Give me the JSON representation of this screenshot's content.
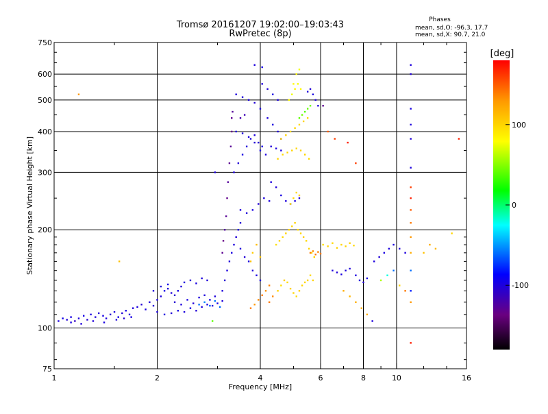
{
  "chart_data": {
    "type": "scatter",
    "title": "Tromsø 20161207 19:02:00–19:03:43",
    "subtitle": "RwPretec (8p)",
    "xlabel": "Frequency [MHz]",
    "ylabel": "Stationary phase Virtual Height [km]",
    "x_scale": "log",
    "y_scale": "log",
    "xlim": [
      1,
      16
    ],
    "ylim": [
      75,
      750
    ],
    "x_ticks": [
      1,
      2,
      4,
      6,
      8,
      10,
      16
    ],
    "x_tick_labels": [
      "1",
      "2",
      "4",
      "6",
      "8",
      "10",
      "16"
    ],
    "x_minor_ticks": [
      1.5,
      3,
      5,
      7,
      9,
      12,
      14
    ],
    "y_ticks": [
      75,
      100,
      200,
      300,
      400,
      500,
      600,
      750
    ],
    "y_tick_labels": [
      "75",
      "100",
      "200",
      "300",
      "400",
      "500",
      "600",
      "750"
    ],
    "grid": true,
    "legend": {
      "title": "Phases",
      "lines": [
        "mean, sd,O: -96.3, 17.7",
        "mean, sd,X: 90.7, 21.0"
      ],
      "placement": "top-right"
    },
    "colorbar": {
      "label": "[deg]",
      "range": [
        -180,
        180
      ],
      "ticks": [
        100,
        0,
        -100
      ],
      "tick_labels": [
        "100",
        "0",
        "-100"
      ],
      "colors": [
        "#000000",
        "#6a0080",
        "#0000ff",
        "#00ffff",
        "#00ff00",
        "#ffff00",
        "#ff9900",
        "#ff0000"
      ]
    },
    "points": [
      [
        1.03,
        105,
        -100
      ],
      [
        1.06,
        107,
        -95
      ],
      [
        1.09,
        106,
        -102
      ],
      [
        1.12,
        108,
        -98
      ],
      [
        1.15,
        105,
        -110
      ],
      [
        1.18,
        107,
        -100
      ],
      [
        1.22,
        109,
        -96
      ],
      [
        1.25,
        106,
        -104
      ],
      [
        1.28,
        110,
        -99
      ],
      [
        1.32,
        108,
        -101
      ],
      [
        1.35,
        111,
        -103
      ],
      [
        1.39,
        109,
        -97
      ],
      [
        1.42,
        107,
        -100
      ],
      [
        1.46,
        110,
        -105
      ],
      [
        1.5,
        112,
        -100
      ],
      [
        1.54,
        108,
        -98
      ],
      [
        1.58,
        111,
        -102
      ],
      [
        1.62,
        113,
        -96
      ],
      [
        1.66,
        110,
        -101
      ],
      [
        1.7,
        115,
        -100
      ],
      [
        1.12,
        104,
        -99
      ],
      [
        1.2,
        103,
        -100
      ],
      [
        1.3,
        105,
        -102
      ],
      [
        1.4,
        104,
        -98
      ],
      [
        1.52,
        106,
        -100
      ],
      [
        1.6,
        107,
        -104
      ],
      [
        1.68,
        108,
        -97
      ],
      [
        1.75,
        116,
        -100
      ],
      [
        1.8,
        118,
        -104
      ],
      [
        1.85,
        114,
        -98
      ],
      [
        1.9,
        120,
        -101
      ],
      [
        1.95,
        117,
        -103
      ],
      [
        2.0,
        122,
        -99
      ],
      [
        2.05,
        125,
        -100
      ],
      [
        2.1,
        130,
        -96
      ],
      [
        2.15,
        132,
        -102
      ],
      [
        2.2,
        128,
        -100
      ],
      [
        2.25,
        126,
        -105
      ],
      [
        2.3,
        130,
        -97
      ],
      [
        2.35,
        134,
        -100
      ],
      [
        2.4,
        138,
        -99
      ],
      [
        2.5,
        140,
        -103
      ],
      [
        2.6,
        137,
        -98
      ],
      [
        2.7,
        142,
        -100
      ],
      [
        2.8,
        140,
        -101
      ],
      [
        1.95,
        130,
        -101
      ],
      [
        2.05,
        134,
        -100
      ],
      [
        2.15,
        136,
        -96
      ],
      [
        2.25,
        120,
        -104
      ],
      [
        2.35,
        118,
        -100
      ],
      [
        2.45,
        122,
        -98
      ],
      [
        2.55,
        119,
        -102
      ],
      [
        2.65,
        124,
        -99
      ],
      [
        2.75,
        126,
        -100
      ],
      [
        2.85,
        122,
        -95
      ],
      [
        2.95,
        125,
        -101
      ],
      [
        2.0,
        112,
        -100
      ],
      [
        2.1,
        110,
        -99
      ],
      [
        2.2,
        111,
        -102
      ],
      [
        2.3,
        113,
        -98
      ],
      [
        2.4,
        112,
        -100
      ],
      [
        2.5,
        115,
        -97
      ],
      [
        2.6,
        113,
        -103
      ],
      [
        2.7,
        116,
        -100
      ],
      [
        2.8,
        118,
        -99
      ],
      [
        2.9,
        117,
        -101
      ],
      [
        3.0,
        119,
        -96
      ],
      [
        3.1,
        121,
        -100
      ],
      [
        2.65,
        118,
        -60
      ],
      [
        2.75,
        120,
        -55
      ],
      [
        2.85,
        117,
        -65
      ],
      [
        2.95,
        121,
        -58
      ],
      [
        3.05,
        116,
        -62
      ],
      [
        3.1,
        130,
        -100
      ],
      [
        3.15,
        140,
        -104
      ],
      [
        3.2,
        150,
        -99
      ],
      [
        3.25,
        160,
        -101
      ],
      [
        3.3,
        170,
        -98
      ],
      [
        3.35,
        180,
        -100
      ],
      [
        3.4,
        190,
        -102
      ],
      [
        3.45,
        200,
        -99
      ],
      [
        3.5,
        210,
        -103
      ],
      [
        3.1,
        170,
        -130
      ],
      [
        3.12,
        185,
        -135
      ],
      [
        3.15,
        200,
        -125
      ],
      [
        3.18,
        220,
        -128
      ],
      [
        3.2,
        250,
        -132
      ],
      [
        3.22,
        280,
        -126
      ],
      [
        3.25,
        320,
        -130
      ],
      [
        3.28,
        360,
        -128
      ],
      [
        3.3,
        400,
        -134
      ],
      [
        3.3,
        440,
        -130
      ],
      [
        3.32,
        460,
        -127
      ],
      [
        3.35,
        300,
        -100
      ],
      [
        3.45,
        320,
        -102
      ],
      [
        3.55,
        340,
        -98
      ],
      [
        3.65,
        360,
        -101
      ],
      [
        3.75,
        380,
        -99
      ],
      [
        3.85,
        390,
        -100
      ],
      [
        3.95,
        370,
        -104
      ],
      [
        4.05,
        360,
        -97
      ],
      [
        3.4,
        400,
        -100
      ],
      [
        3.55,
        395,
        -101
      ],
      [
        3.7,
        385,
        -99
      ],
      [
        3.85,
        370,
        -103
      ],
      [
        4.0,
        350,
        -98
      ],
      [
        4.15,
        340,
        -100
      ],
      [
        3.5,
        230,
        -100
      ],
      [
        3.65,
        225,
        -101
      ],
      [
        3.8,
        230,
        -98
      ],
      [
        3.95,
        240,
        -102
      ],
      [
        4.1,
        250,
        -99
      ],
      [
        4.25,
        245,
        -100
      ],
      [
        3.5,
        175,
        -100
      ],
      [
        3.6,
        165,
        -102
      ],
      [
        3.7,
        160,
        -98
      ],
      [
        3.8,
        150,
        -101
      ],
      [
        3.9,
        145,
        -99
      ],
      [
        4.0,
        140,
        -100
      ],
      [
        3.4,
        520,
        -100
      ],
      [
        3.55,
        510,
        -101
      ],
      [
        3.7,
        500,
        -99
      ],
      [
        3.85,
        490,
        -103
      ],
      [
        4.0,
        470,
        -98
      ],
      [
        3.5,
        440,
        -120
      ],
      [
        3.6,
        450,
        -115
      ],
      [
        3.75,
        115,
        140
      ],
      [
        3.85,
        118,
        130
      ],
      [
        3.95,
        122,
        135
      ],
      [
        4.05,
        126,
        140
      ],
      [
        4.15,
        130,
        132
      ],
      [
        4.25,
        135,
        138
      ],
      [
        3.75,
        160,
        110
      ],
      [
        3.8,
        170,
        105
      ],
      [
        3.9,
        180,
        112
      ],
      [
        4.0,
        165,
        108
      ],
      [
        3.85,
        640,
        -100
      ],
      [
        4.05,
        630,
        -95
      ],
      [
        4.05,
        560,
        -100
      ],
      [
        4.2,
        540,
        -102
      ],
      [
        4.35,
        520,
        -98
      ],
      [
        4.5,
        500,
        -100
      ],
      [
        4.2,
        440,
        -100
      ],
      [
        4.35,
        420,
        -99
      ],
      [
        4.5,
        400,
        -101
      ],
      [
        4.6,
        380,
        -100
      ],
      [
        4.3,
        360,
        -101
      ],
      [
        4.45,
        355,
        -100
      ],
      [
        4.6,
        350,
        -99
      ],
      [
        4.3,
        280,
        -100
      ],
      [
        4.45,
        270,
        -102
      ],
      [
        4.6,
        255,
        -98
      ],
      [
        4.75,
        245,
        -100
      ],
      [
        4.9,
        240,
        -101
      ],
      [
        5.05,
        245,
        -99
      ],
      [
        5.2,
        250,
        -100
      ],
      [
        4.25,
        120,
        140
      ],
      [
        4.35,
        125,
        135
      ],
      [
        4.5,
        130,
        100
      ],
      [
        4.6,
        135,
        95
      ],
      [
        4.7,
        140,
        105
      ],
      [
        4.8,
        138,
        98
      ],
      [
        4.9,
        132,
        102
      ],
      [
        5.0,
        128,
        100
      ],
      [
        5.1,
        125,
        97
      ],
      [
        5.2,
        130,
        103
      ],
      [
        5.3,
        135,
        100
      ],
      [
        5.4,
        138,
        99
      ],
      [
        5.5,
        140,
        101
      ],
      [
        5.6,
        145,
        98
      ],
      [
        5.7,
        140,
        100
      ],
      [
        4.45,
        180,
        95
      ],
      [
        4.55,
        185,
        100
      ],
      [
        4.65,
        190,
        98
      ],
      [
        4.75,
        195,
        102
      ],
      [
        4.85,
        200,
        99
      ],
      [
        4.95,
        205,
        100
      ],
      [
        5.05,
        210,
        101
      ],
      [
        5.15,
        200,
        97
      ],
      [
        5.25,
        195,
        100
      ],
      [
        5.35,
        190,
        103
      ],
      [
        5.45,
        185,
        99
      ],
      [
        5.55,
        175,
        100
      ],
      [
        5.65,
        170,
        98
      ],
      [
        5.75,
        165,
        101
      ],
      [
        4.5,
        330,
        100
      ],
      [
        4.65,
        340,
        98
      ],
      [
        4.8,
        345,
        101
      ],
      [
        4.95,
        350,
        100
      ],
      [
        5.1,
        355,
        99
      ],
      [
        5.25,
        350,
        102
      ],
      [
        5.4,
        340,
        100
      ],
      [
        5.55,
        330,
        97
      ],
      [
        4.6,
        380,
        100
      ],
      [
        4.75,
        390,
        101
      ],
      [
        4.9,
        400,
        99
      ],
      [
        5.05,
        410,
        100
      ],
      [
        5.2,
        420,
        98
      ],
      [
        5.35,
        430,
        101
      ],
      [
        5.5,
        440,
        100
      ],
      [
        4.85,
        500,
        80
      ],
      [
        4.95,
        520,
        75
      ],
      [
        5.05,
        540,
        85
      ],
      [
        5.15,
        560,
        78
      ],
      [
        5.25,
        540,
        82
      ],
      [
        5.0,
        560,
        80
      ],
      [
        5.1,
        600,
        85
      ],
      [
        5.2,
        620,
        76
      ],
      [
        4.9,
        240,
        95
      ],
      [
        5.0,
        250,
        100
      ],
      [
        5.1,
        260,
        98
      ],
      [
        5.2,
        255,
        101
      ],
      [
        5.2,
        440,
        40
      ],
      [
        5.3,
        450,
        45
      ],
      [
        5.4,
        460,
        38
      ],
      [
        5.5,
        470,
        42
      ],
      [
        5.6,
        480,
        44
      ],
      [
        5.5,
        530,
        -100
      ],
      [
        5.6,
        540,
        -102
      ],
      [
        5.7,
        520,
        -98
      ],
      [
        5.8,
        500,
        -100
      ],
      [
        5.9,
        480,
        -101
      ],
      [
        5.6,
        170,
        140
      ],
      [
        5.7,
        172,
        135
      ],
      [
        5.8,
        168,
        142
      ],
      [
        5.9,
        171,
        138
      ],
      [
        6.0,
        169,
        140
      ],
      [
        6.1,
        180,
        95
      ],
      [
        6.3,
        178,
        100
      ],
      [
        6.5,
        182,
        98
      ],
      [
        6.7,
        176,
        101
      ],
      [
        6.9,
        180,
        99
      ],
      [
        7.1,
        178,
        100
      ],
      [
        7.3,
        182,
        102
      ],
      [
        7.5,
        179,
        98
      ],
      [
        6.5,
        150,
        -100
      ],
      [
        6.7,
        148,
        -102
      ],
      [
        6.9,
        146,
        -98
      ],
      [
        7.1,
        150,
        -100
      ],
      [
        7.3,
        152,
        -101
      ],
      [
        7.6,
        145,
        -99
      ],
      [
        7.8,
        140,
        -100
      ],
      [
        8.0,
        138,
        -102
      ],
      [
        8.2,
        142,
        -98
      ],
      [
        7.0,
        130,
        120
      ],
      [
        7.3,
        125,
        115
      ],
      [
        7.6,
        120,
        118
      ],
      [
        7.9,
        115,
        122
      ],
      [
        8.2,
        110,
        120
      ],
      [
        8.5,
        105,
        -100
      ],
      [
        8.6,
        160,
        -100
      ],
      [
        8.9,
        165,
        -102
      ],
      [
        9.2,
        170,
        -98
      ],
      [
        9.5,
        175,
        -100
      ],
      [
        9.8,
        180,
        -99
      ],
      [
        10.2,
        175,
        -101
      ],
      [
        10.6,
        170,
        -100
      ],
      [
        9.0,
        140,
        60
      ],
      [
        9.4,
        145,
        -20
      ],
      [
        9.8,
        150,
        -60
      ],
      [
        10.2,
        135,
        100
      ],
      [
        10.6,
        130,
        140
      ],
      [
        6.1,
        480,
        -130
      ],
      [
        6.3,
        400,
        150
      ],
      [
        6.6,
        380,
        160
      ],
      [
        7.2,
        370,
        170
      ],
      [
        7.6,
        320,
        160
      ],
      [
        11.0,
        640,
        -100
      ],
      [
        11.0,
        600,
        -102
      ],
      [
        11.0,
        470,
        -98
      ],
      [
        11.0,
        420,
        -100
      ],
      [
        11.0,
        380,
        -101
      ],
      [
        11.0,
        310,
        -100
      ],
      [
        11.0,
        270,
        160
      ],
      [
        11.0,
        250,
        170
      ],
      [
        11.0,
        230,
        150
      ],
      [
        11.0,
        210,
        140
      ],
      [
        11.0,
        190,
        130
      ],
      [
        11.0,
        170,
        120
      ],
      [
        11.0,
        150,
        -60
      ],
      [
        11.0,
        130,
        -80
      ],
      [
        11.0,
        120,
        130
      ],
      [
        11.0,
        90,
        170
      ],
      [
        12.0,
        170,
        110
      ],
      [
        12.5,
        180,
        120
      ],
      [
        13.0,
        175,
        115
      ],
      [
        14.5,
        195,
        100
      ],
      [
        15.2,
        380,
        170
      ],
      [
        1.18,
        520,
        130
      ],
      [
        1.55,
        160,
        110
      ],
      [
        2.95,
        300,
        -100
      ],
      [
        2.9,
        105,
        40
      ]
    ]
  }
}
